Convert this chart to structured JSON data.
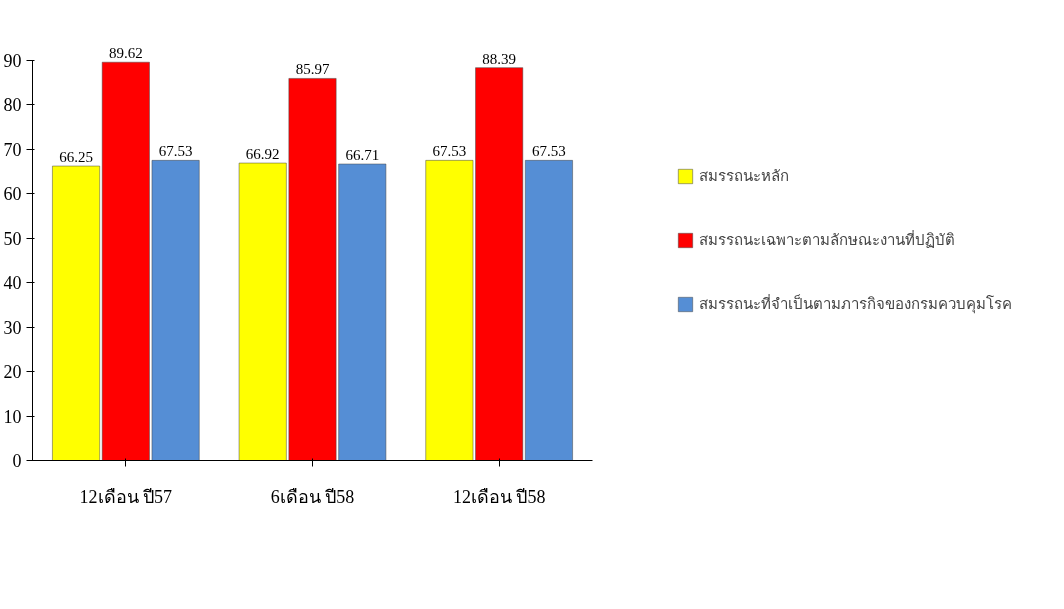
{
  "chart_data": {
    "type": "bar",
    "categories": [
      "12เดือน ปี57",
      "6เดือน ปี58",
      "12เดือน ปี58"
    ],
    "series": [
      {
        "name": "สมรรถนะหลัก",
        "color": "#ffff00",
        "values": [
          66.25,
          66.92,
          67.53
        ]
      },
      {
        "name": "สมรรถนะเฉพาะตามลักษณะงานที่ปฏิบัติ",
        "color": "#ff0000",
        "values": [
          89.62,
          85.97,
          88.39
        ]
      },
      {
        "name": "สมรรถนะที่จำเป็นตามภารกิจของกรมควบคุมโรค",
        "color": "#558ed5",
        "values": [
          67.53,
          66.71,
          67.53
        ]
      }
    ],
    "ylim": [
      0,
      90
    ],
    "yticks": [
      0,
      10,
      20,
      30,
      40,
      50,
      60,
      70,
      80,
      90
    ],
    "grid": false,
    "legend": "right",
    "data_labels": true
  }
}
